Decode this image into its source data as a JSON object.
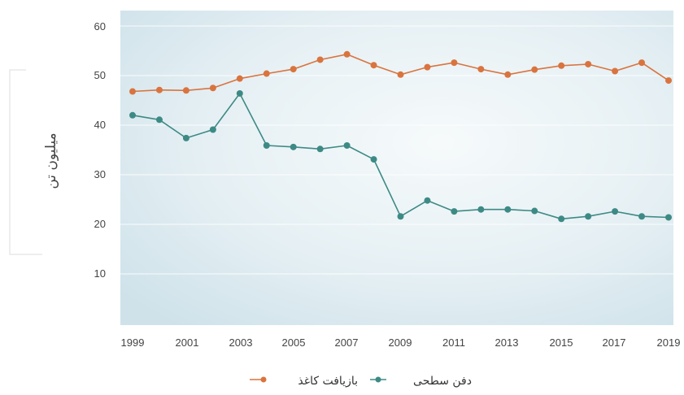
{
  "chart_data": {
    "type": "line",
    "ylabel": "میلیون تن",
    "xlabel": "",
    "title": "",
    "x": [
      1999,
      2000,
      2001,
      2002,
      2003,
      2004,
      2005,
      2006,
      2007,
      2008,
      2009,
      2010,
      2011,
      2012,
      2013,
      2014,
      2015,
      2016,
      2017,
      2018,
      2019
    ],
    "xticks": [
      "1999",
      "2001",
      "2003",
      "2005",
      "2007",
      "2009",
      "2011",
      "2013",
      "2015",
      "2017",
      "2019"
    ],
    "yticks": [
      "10",
      "20",
      "30",
      "40",
      "50",
      "60"
    ],
    "ylim": [
      0,
      60
    ],
    "xlim": [
      1999,
      2019
    ],
    "grid": true,
    "legend_position": "bottom",
    "series": [
      {
        "name": "بازیافت کاغذ",
        "color": "#d9743f",
        "values": [
          46.8,
          47.1,
          47.0,
          47.5,
          49.4,
          50.4,
          51.3,
          53.2,
          54.3,
          52.1,
          50.2,
          51.7,
          52.6,
          51.3,
          50.2,
          51.2,
          52.0,
          52.3,
          50.9,
          52.6,
          49.0
        ]
      },
      {
        "name": "دفن سطحی",
        "color": "#3d8a85",
        "values": [
          42.0,
          41.1,
          37.4,
          39.1,
          46.4,
          35.9,
          35.6,
          35.2,
          35.9,
          33.1,
          21.6,
          24.8,
          22.6,
          23.0,
          23.0,
          22.7,
          21.1,
          21.6,
          22.6,
          21.6,
          21.4
        ]
      }
    ]
  }
}
